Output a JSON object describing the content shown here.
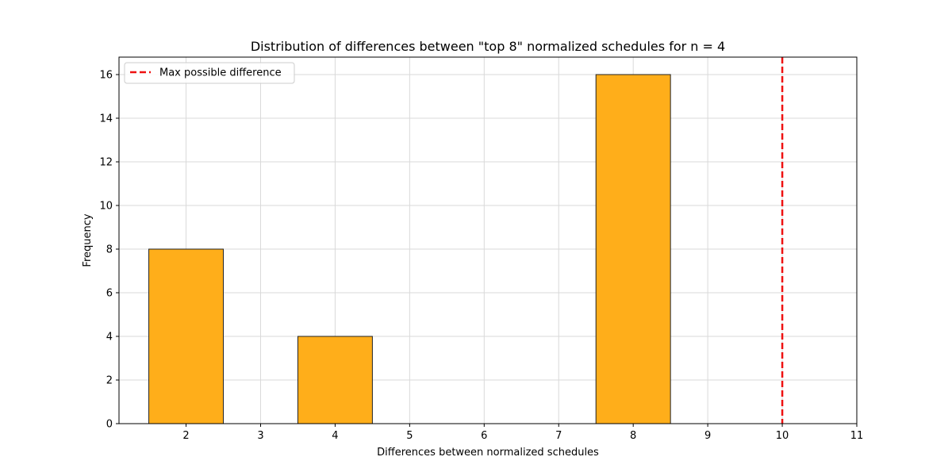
{
  "chart_data": {
    "type": "bar",
    "title": "Distribution of differences between \"top 8\" normalized schedules for n = 4",
    "xlabel": "Differences between normalized schedules",
    "ylabel": "Frequency",
    "xlim": [
      1.1,
      11.0
    ],
    "ylim": [
      0,
      16.8
    ],
    "xticks": [
      2,
      3,
      4,
      5,
      6,
      7,
      8,
      9,
      10,
      11
    ],
    "yticks": [
      0,
      2,
      4,
      6,
      8,
      10,
      12,
      14,
      16
    ],
    "grid": true,
    "bins": [
      {
        "x0": 1.5,
        "x1": 2.5,
        "value": 8
      },
      {
        "x0": 2.5,
        "x1": 3.5,
        "value": 0
      },
      {
        "x0": 3.5,
        "x1": 4.5,
        "value": 4
      },
      {
        "x0": 4.5,
        "x1": 5.5,
        "value": 0
      },
      {
        "x0": 5.5,
        "x1": 6.5,
        "value": 0
      },
      {
        "x0": 6.5,
        "x1": 7.5,
        "value": 0
      },
      {
        "x0": 7.5,
        "x1": 8.5,
        "value": 16
      },
      {
        "x0": 8.5,
        "x1": 9.5,
        "value": 0
      },
      {
        "x0": 9.5,
        "x1": 10.5,
        "value": 0
      }
    ],
    "bar_color": "#ffae1a",
    "bar_edge_color": "#222222",
    "reference_line": {
      "x": 10,
      "label": "Max possible difference",
      "color": "#ee1111",
      "style": "dashed"
    },
    "legend": {
      "position": "top-left",
      "entries": [
        "Max possible difference"
      ]
    }
  }
}
